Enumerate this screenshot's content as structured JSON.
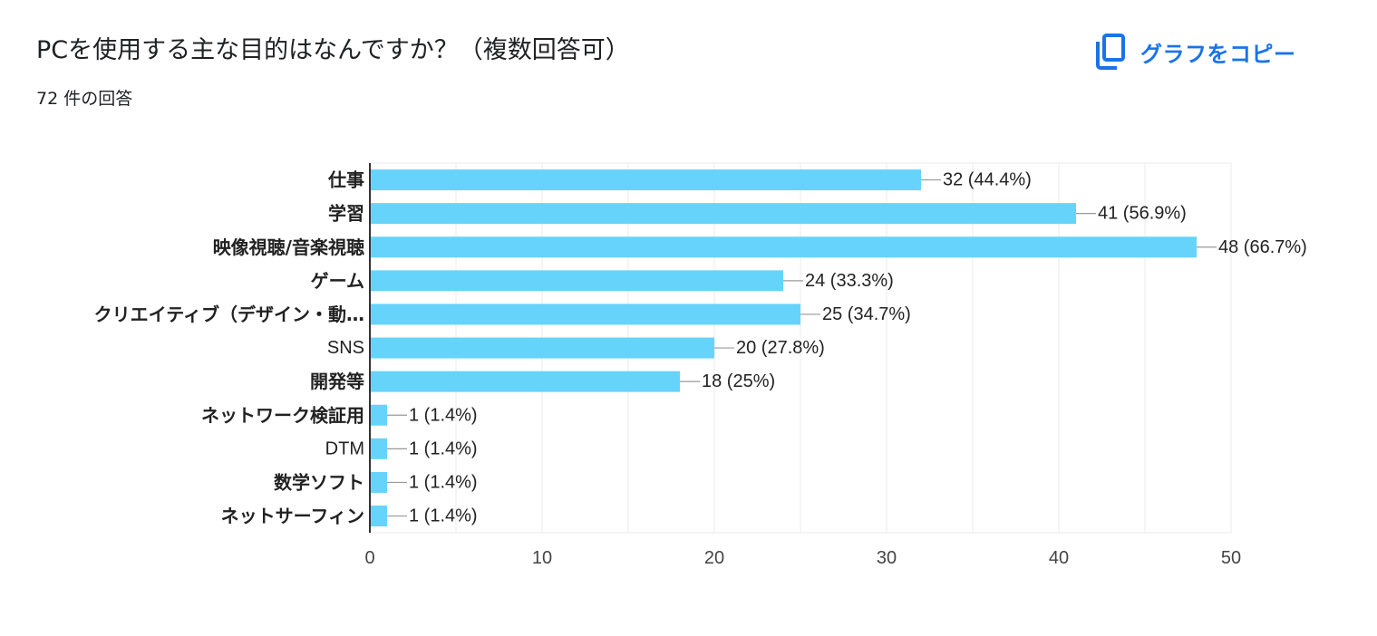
{
  "header": {
    "title": "PCを使用する主な目的はなんですか？（複数回答可）",
    "response_count": "72 件の回答"
  },
  "toolbar": {
    "copy_label": "グラフをコピー",
    "copy_icon": "copy-icon"
  },
  "colors": {
    "bar": "#66d4fa",
    "link": "#1a73e8",
    "gridline": "#ebebeb",
    "axis": "#333333"
  },
  "chart_data": {
    "type": "bar",
    "orientation": "horizontal",
    "categories": [
      "仕事",
      "学習",
      "映像視聴/音楽視聴",
      "ゲーム",
      "クリエイティブ（デザイン・動…",
      "SNS",
      "開発等",
      "ネットワーク検証用",
      "DTM",
      "数学ソフト",
      "ネットサーフィン"
    ],
    "values": [
      32,
      41,
      48,
      24,
      25,
      20,
      18,
      1,
      1,
      1,
      1
    ],
    "data_labels": [
      "32 (44.4%)",
      "41 (56.9%)",
      "48 (66.7%)",
      "24 (33.3%)",
      "25 (34.7%)",
      "20 (27.8%)",
      "18 (25%)",
      "1 (1.4%)",
      "1 (1.4%)",
      "1 (1.4%)",
      "1 (1.4%)"
    ],
    "xlim": [
      0,
      50
    ],
    "x_ticks": [
      "0",
      "10",
      "20",
      "30",
      "40",
      "50"
    ],
    "minor_gridlines": true,
    "legend": "none"
  }
}
